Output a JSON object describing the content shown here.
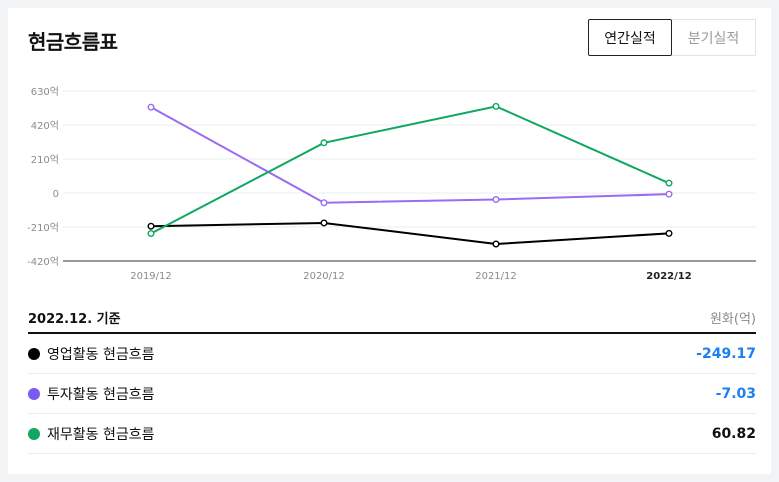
{
  "header": {
    "title": "현금흐름표"
  },
  "tabs": [
    {
      "label": "연간실적",
      "active": true
    },
    {
      "label": "분기실적",
      "active": false
    }
  ],
  "chart_data": {
    "type": "line",
    "categories": [
      "2019/12",
      "2020/12",
      "2021/12",
      "2022/12"
    ],
    "yticks": [
      630,
      420,
      210,
      0,
      -210,
      -420
    ],
    "ytick_labels": [
      "630억",
      "420억",
      "210억",
      "0",
      "-210억",
      "-420억"
    ],
    "ylim": [
      -420,
      630
    ],
    "grid": true,
    "series": [
      {
        "name": "영업활동 현금흐름",
        "color": "#000000",
        "values": [
          -205,
          -185,
          -315,
          -249.17
        ]
      },
      {
        "name": "투자활동 현금흐름",
        "color": "#9b6bf2",
        "values": [
          530,
          -60,
          -40,
          -7.03
        ]
      },
      {
        "name": "재무활동 현금흐름",
        "color": "#10a760",
        "values": [
          -250,
          310,
          535,
          60.82
        ]
      }
    ]
  },
  "summary": {
    "date_label": "2022.12. 기준",
    "unit_label": "원화(억)",
    "rows": [
      {
        "name": "영업활동 현금흐름",
        "value": "-249.17",
        "dot_color": "#000000",
        "value_color": "#1a7ff0"
      },
      {
        "name": "투자활동 현금흐름",
        "value": "-7.03",
        "dot_color": "#7a5af5",
        "value_color": "#1a7ff0"
      },
      {
        "name": "재무활동 현금흐름",
        "value": "60.82",
        "dot_color": "#10a760",
        "value_color": "#111111"
      }
    ]
  }
}
